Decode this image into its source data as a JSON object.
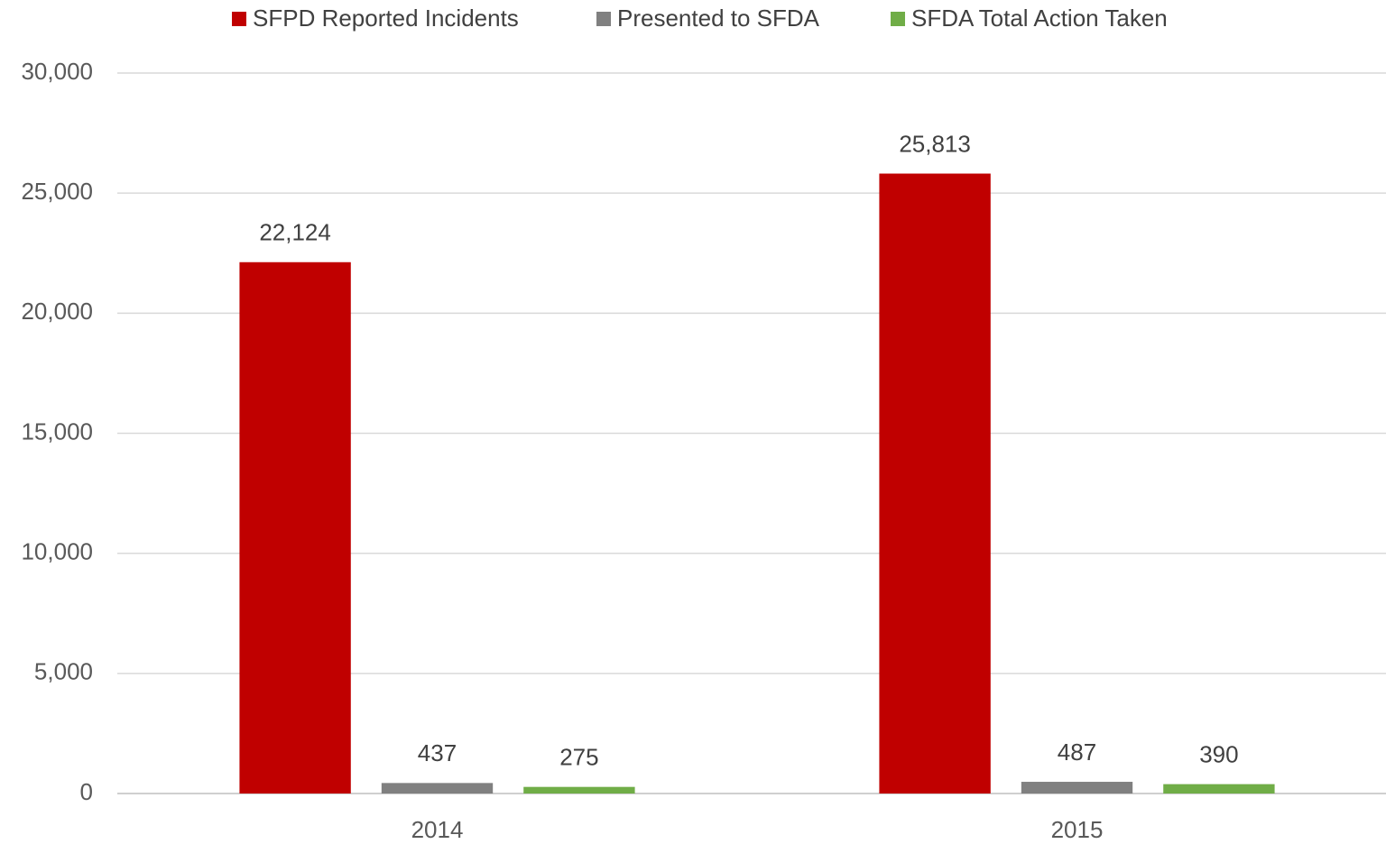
{
  "chart_data": {
    "type": "bar",
    "categories": [
      "2014",
      "2015"
    ],
    "series": [
      {
        "name": "SFPD Reported Incidents",
        "color": "#c00000",
        "values": [
          22124,
          25813
        ],
        "value_labels": [
          "22,124",
          "25,813"
        ]
      },
      {
        "name": "Presented to SFDA",
        "color": "#808080",
        "values": [
          437,
          487
        ]
      },
      {
        "name": "SFDA Total Action Taken",
        "color": "#70ad47",
        "values": [
          275,
          390
        ]
      }
    ],
    "ylim": [
      0,
      30000
    ],
    "yticks": [
      0,
      {
        "value": 5000,
        "label": "5,000"
      },
      {
        "value": 10000,
        "label": "10,000"
      },
      {
        "value": 15000,
        "label": "15,000"
      },
      {
        "value": 20000,
        "label": "20,000"
      },
      {
        "value": 25000,
        "label": "25,000"
      },
      {
        "value": 30000,
        "label": "30,000"
      }
    ],
    "grid": true,
    "legend": "top"
  }
}
